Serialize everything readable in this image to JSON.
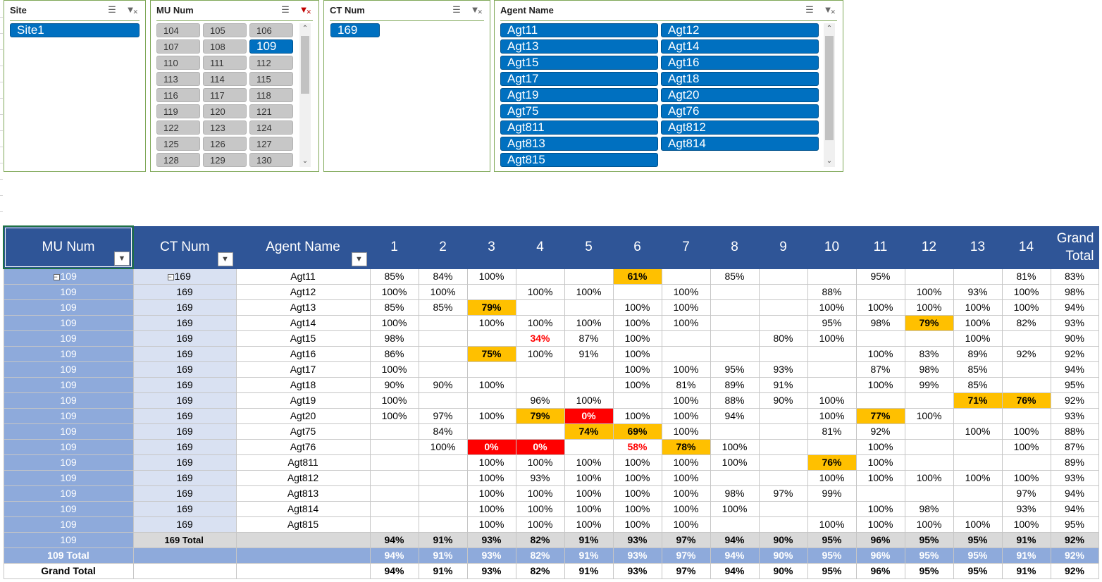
{
  "slicers": {
    "site": {
      "title": "Site",
      "items": [
        "Site1"
      ],
      "selected": [
        "Site1"
      ]
    },
    "mu_num": {
      "title": "MU Num",
      "items": [
        "104",
        "105",
        "106",
        "107",
        "108",
        "109",
        "110",
        "111",
        "112",
        "113",
        "114",
        "115",
        "116",
        "117",
        "118",
        "119",
        "120",
        "121",
        "122",
        "123",
        "124",
        "125",
        "126",
        "127",
        "128",
        "129",
        "130"
      ],
      "selected": [
        "109"
      ]
    },
    "ct_num": {
      "title": "CT Num",
      "items": [
        "169"
      ],
      "selected": [
        "169"
      ]
    },
    "agent_name": {
      "title": "Agent Name",
      "items": [
        "Agt11",
        "Agt12",
        "Agt13",
        "Agt14",
        "Agt15",
        "Agt16",
        "Agt17",
        "Agt18",
        "Agt19",
        "Agt20",
        "Agt75",
        "Agt76",
        "Agt811",
        "Agt812",
        "Agt813",
        "Agt814",
        "Agt815"
      ],
      "selected": [
        "Agt11",
        "Agt12",
        "Agt13",
        "Agt14",
        "Agt15",
        "Agt16",
        "Agt17",
        "Agt18",
        "Agt19",
        "Agt20",
        "Agt75",
        "Agt76",
        "Agt811",
        "Agt812",
        "Agt813",
        "Agt814",
        "Agt815"
      ]
    }
  },
  "colors": {
    "header_bg": "#2f5597",
    "mu_bg": "#8eaadb",
    "ct_bg": "#d9e1f2",
    "amber": "#ffc000",
    "red": "#ff0000",
    "slicer_selected": "#0070c0"
  },
  "pivot": {
    "headers": {
      "mu": "MU Num",
      "ct": "CT Num",
      "agent": "Agent Name",
      "days": [
        "1",
        "2",
        "3",
        "4",
        "5",
        "6",
        "7",
        "8",
        "9",
        "10",
        "11",
        "12",
        "13",
        "14"
      ],
      "grand_total": "Grand Total"
    },
    "rows": [
      {
        "mu": "109",
        "ct": "169",
        "agent": "Agt11",
        "values": [
          "85%",
          "84%",
          "100%",
          "",
          "",
          "61%",
          "",
          "85%",
          "",
          "",
          "95%",
          "",
          "",
          "81%"
        ],
        "total": "83%",
        "flags": {
          "5": "amber"
        }
      },
      {
        "mu": "109",
        "ct": "169",
        "agent": "Agt12",
        "values": [
          "100%",
          "100%",
          "",
          "100%",
          "100%",
          "",
          "100%",
          "",
          "",
          "88%",
          "",
          "100%",
          "93%",
          "100%"
        ],
        "total": "98%"
      },
      {
        "mu": "109",
        "ct": "169",
        "agent": "Agt13",
        "values": [
          "85%",
          "85%",
          "79%",
          "",
          "",
          "100%",
          "100%",
          "",
          "",
          "100%",
          "100%",
          "100%",
          "100%",
          "100%"
        ],
        "total": "94%",
        "flags": {
          "2": "amber"
        }
      },
      {
        "mu": "109",
        "ct": "169",
        "agent": "Agt14",
        "values": [
          "100%",
          "",
          "100%",
          "100%",
          "100%",
          "100%",
          "100%",
          "",
          "",
          "95%",
          "98%",
          "79%",
          "100%",
          "82%"
        ],
        "total": "93%",
        "flags": {
          "11": "amber"
        }
      },
      {
        "mu": "109",
        "ct": "169",
        "agent": "Agt15",
        "values": [
          "98%",
          "",
          "",
          "34%",
          "87%",
          "100%",
          "",
          "",
          "80%",
          "100%",
          "",
          "",
          "100%",
          ""
        ],
        "total": "90%",
        "flags": {
          "3": "redtext"
        }
      },
      {
        "mu": "109",
        "ct": "169",
        "agent": "Agt16",
        "values": [
          "86%",
          "",
          "75%",
          "100%",
          "91%",
          "100%",
          "",
          "",
          "",
          "",
          "100%",
          "83%",
          "89%",
          "92%"
        ],
        "total": "92%",
        "flags": {
          "2": "amber"
        }
      },
      {
        "mu": "109",
        "ct": "169",
        "agent": "Agt17",
        "values": [
          "100%",
          "",
          "",
          "",
          "",
          "100%",
          "100%",
          "95%",
          "93%",
          "",
          "87%",
          "98%",
          "85%",
          ""
        ],
        "total": "94%"
      },
      {
        "mu": "109",
        "ct": "169",
        "agent": "Agt18",
        "values": [
          "90%",
          "90%",
          "100%",
          "",
          "",
          "100%",
          "81%",
          "89%",
          "91%",
          "",
          "100%",
          "99%",
          "85%",
          ""
        ],
        "total": "95%"
      },
      {
        "mu": "109",
        "ct": "169",
        "agent": "Agt19",
        "values": [
          "100%",
          "",
          "",
          "96%",
          "100%",
          "",
          "100%",
          "88%",
          "90%",
          "100%",
          "",
          "",
          "71%",
          "76%"
        ],
        "total": "92%",
        "flags": {
          "12": "amber",
          "13": "amber"
        }
      },
      {
        "mu": "109",
        "ct": "169",
        "agent": "Agt20",
        "values": [
          "100%",
          "97%",
          "100%",
          "79%",
          "0%",
          "100%",
          "100%",
          "94%",
          "",
          "100%",
          "77%",
          "100%",
          "",
          ""
        ],
        "total": "93%",
        "flags": {
          "3": "amber",
          "4": "red",
          "10": "amber"
        }
      },
      {
        "mu": "109",
        "ct": "169",
        "agent": "Agt75",
        "values": [
          "",
          "84%",
          "",
          "",
          "74%",
          "69%",
          "100%",
          "",
          "",
          "81%",
          "92%",
          "",
          "100%",
          "100%"
        ],
        "total": "88%",
        "flags": {
          "4": "amber",
          "5": "amber"
        }
      },
      {
        "mu": "109",
        "ct": "169",
        "agent": "Agt76",
        "values": [
          "",
          "100%",
          "0%",
          "0%",
          "",
          "58%",
          "78%",
          "100%",
          "",
          "",
          "100%",
          "",
          "",
          "100%"
        ],
        "total": "87%",
        "flags": {
          "2": "red",
          "3": "red",
          "5": "redtext",
          "6": "amber"
        }
      },
      {
        "mu": "109",
        "ct": "169",
        "agent": "Agt811",
        "values": [
          "",
          "",
          "100%",
          "100%",
          "100%",
          "100%",
          "100%",
          "100%",
          "",
          "76%",
          "100%",
          "",
          "",
          ""
        ],
        "total": "89%",
        "flags": {
          "9": "amber"
        }
      },
      {
        "mu": "109",
        "ct": "169",
        "agent": "Agt812",
        "values": [
          "",
          "",
          "100%",
          "93%",
          "100%",
          "100%",
          "100%",
          "",
          "",
          "100%",
          "100%",
          "100%",
          "100%",
          "100%"
        ],
        "total": "93%"
      },
      {
        "mu": "109",
        "ct": "169",
        "agent": "Agt813",
        "values": [
          "",
          "",
          "100%",
          "100%",
          "100%",
          "100%",
          "100%",
          "98%",
          "97%",
          "99%",
          "",
          "",
          "",
          "97%"
        ],
        "total": "94%"
      },
      {
        "mu": "109",
        "ct": "169",
        "agent": "Agt814",
        "values": [
          "",
          "",
          "100%",
          "100%",
          "100%",
          "100%",
          "100%",
          "100%",
          "",
          "",
          "100%",
          "98%",
          "",
          "93%"
        ],
        "total": "94%"
      },
      {
        "mu": "109",
        "ct": "169",
        "agent": "Agt815",
        "values": [
          "",
          "",
          "100%",
          "100%",
          "100%",
          "100%",
          "100%",
          "",
          "",
          "100%",
          "100%",
          "100%",
          "100%",
          "100%"
        ],
        "total": "95%"
      }
    ],
    "ct_total": {
      "mu": "109",
      "label": "169 Total",
      "values": [
        "94%",
        "91%",
        "93%",
        "82%",
        "91%",
        "93%",
        "97%",
        "94%",
        "90%",
        "95%",
        "96%",
        "95%",
        "95%",
        "91%"
      ],
      "total": "92%"
    },
    "mu_total": {
      "label": "109 Total",
      "values": [
        "94%",
        "91%",
        "93%",
        "82%",
        "91%",
        "93%",
        "97%",
        "94%",
        "90%",
        "95%",
        "96%",
        "95%",
        "95%",
        "91%"
      ],
      "total": "92%"
    },
    "grand_total": {
      "label": "Grand Total",
      "values": [
        "94%",
        "91%",
        "93%",
        "82%",
        "91%",
        "93%",
        "97%",
        "94%",
        "90%",
        "95%",
        "96%",
        "95%",
        "95%",
        "91%"
      ],
      "total": "92%"
    }
  }
}
